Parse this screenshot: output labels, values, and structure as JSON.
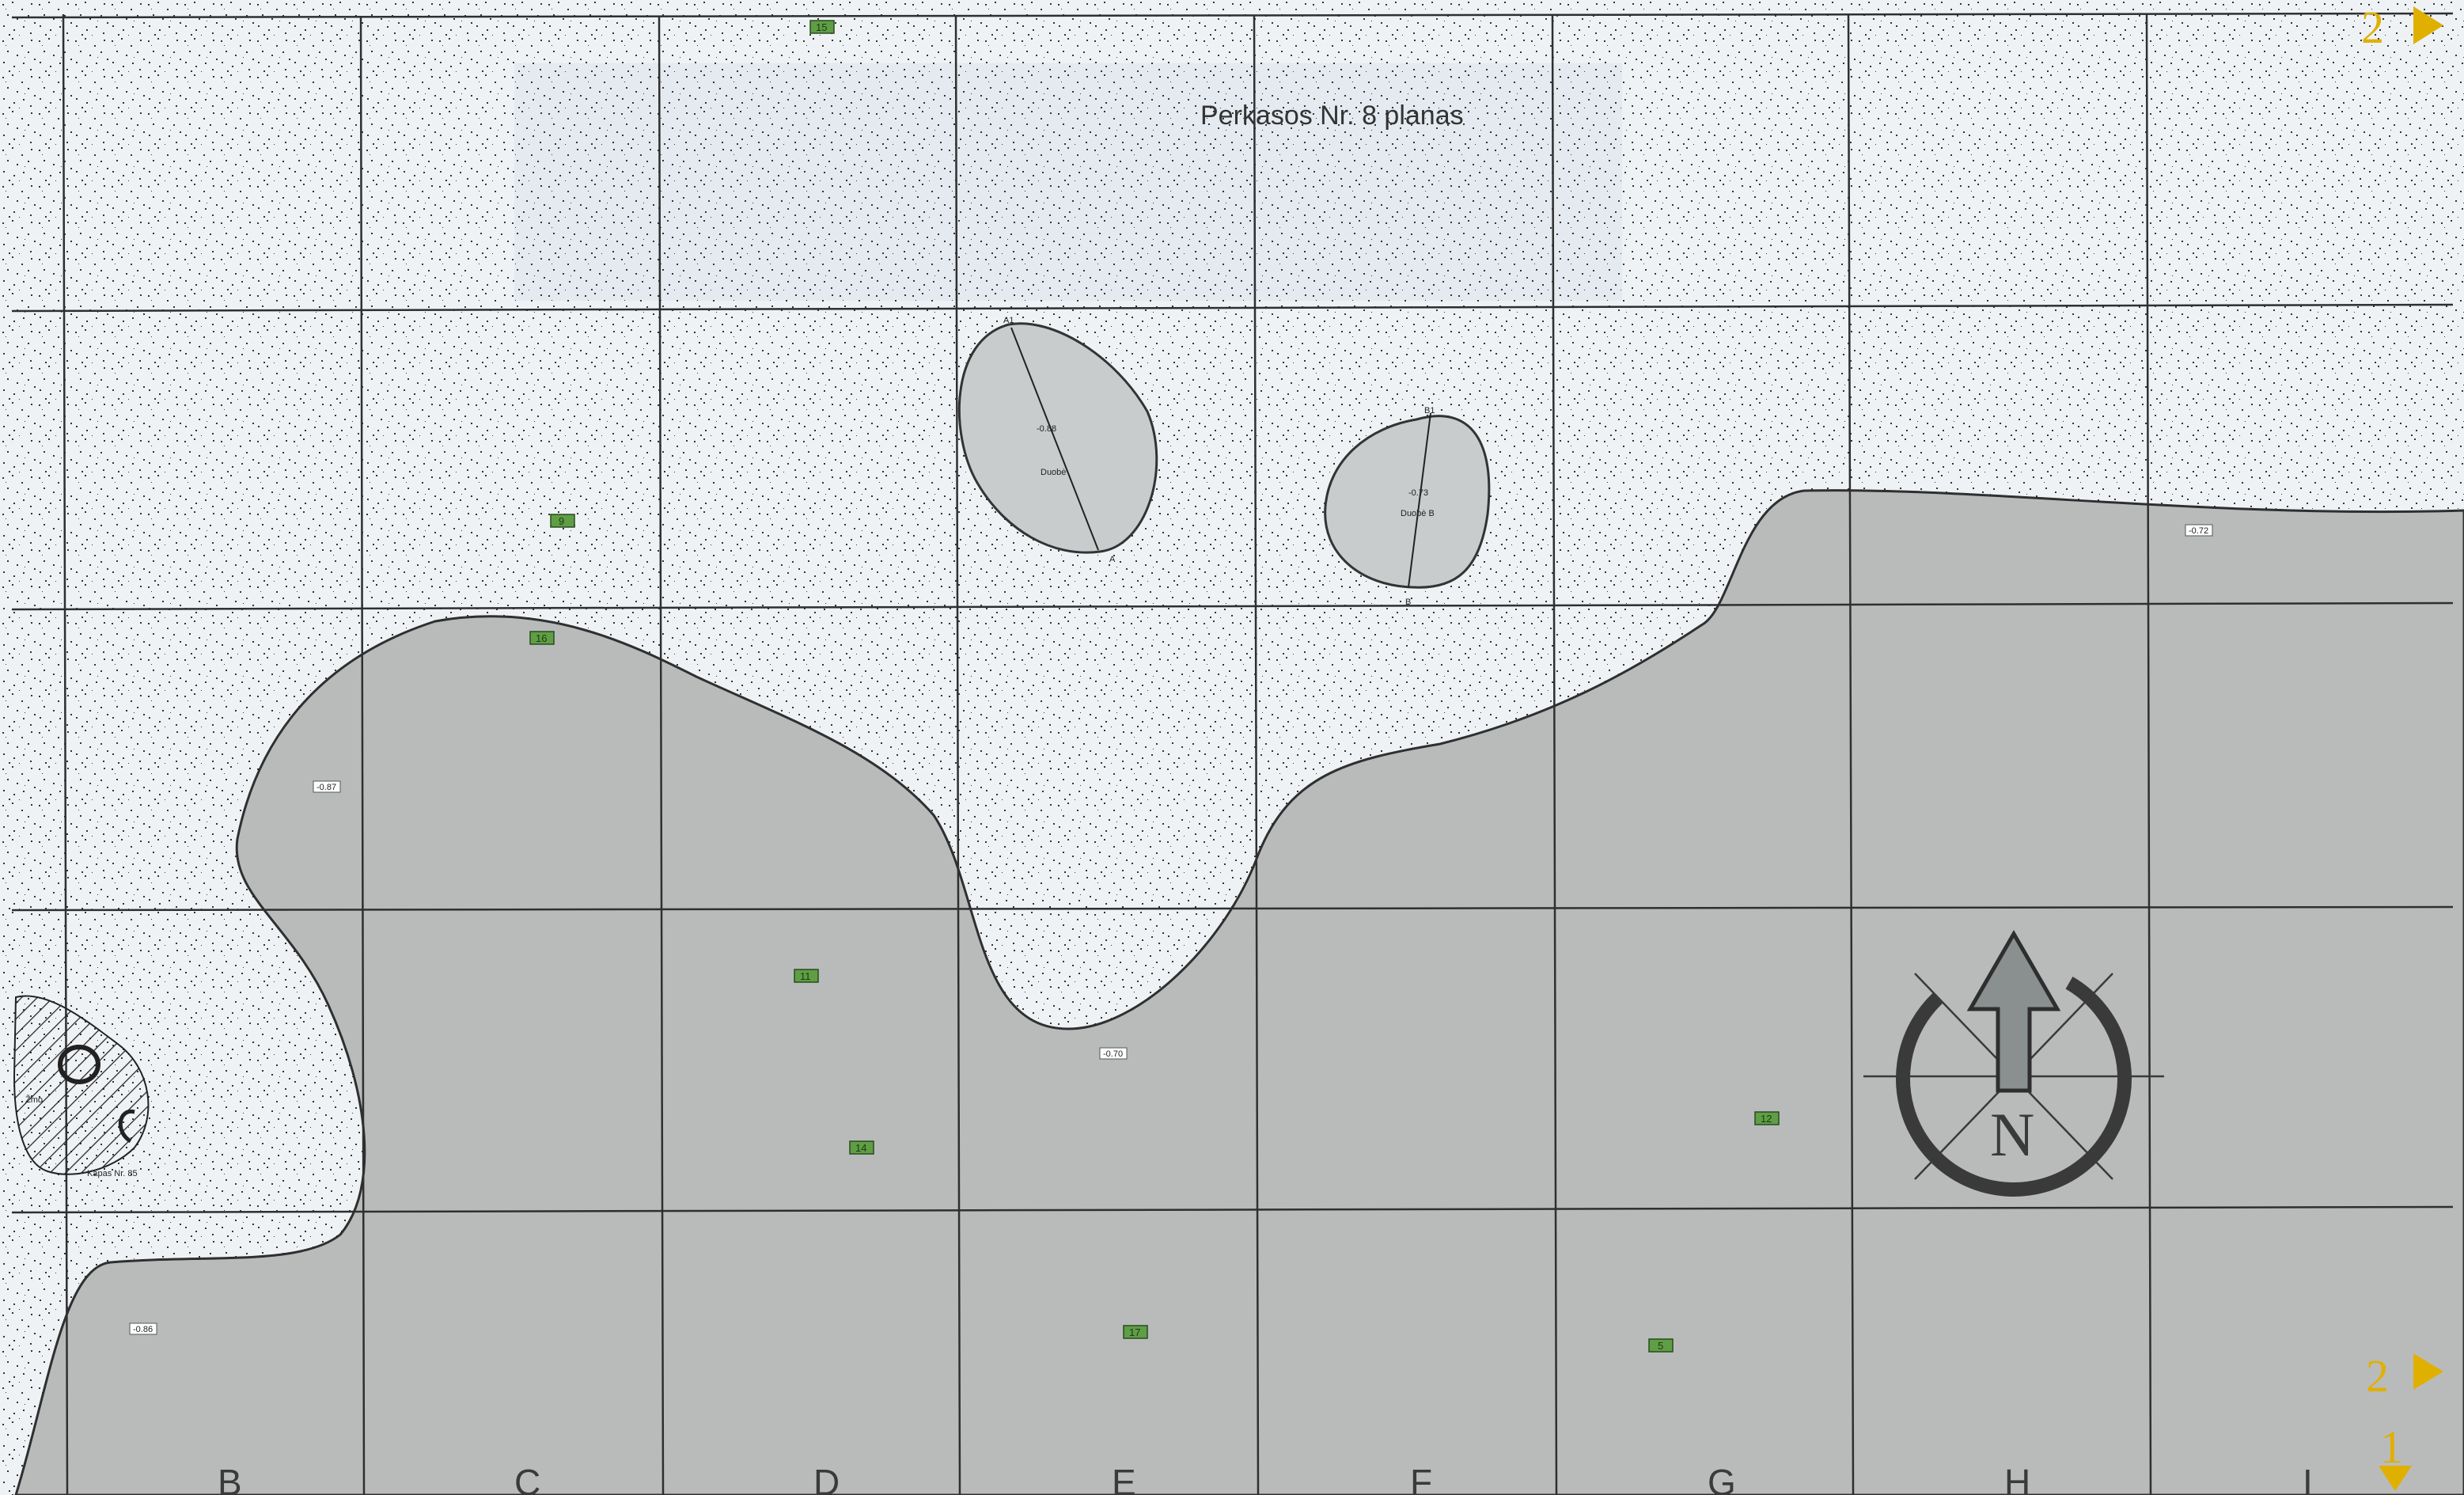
{
  "title": "Perkasos Nr. 8 planas",
  "colors": {
    "background": "#f4f6f7",
    "fill_layer": "#b9bbbb",
    "grid_line": "#2f2f2f",
    "marker_fill": "#5f9e45",
    "sheet_marker": "#e0b000"
  },
  "column_letters": [
    "B",
    "C",
    "D",
    "E",
    "F",
    "G",
    "H",
    "I"
  ],
  "finds": [
    {
      "id": "find-15",
      "number": "15"
    },
    {
      "id": "find-9",
      "number": "9"
    },
    {
      "id": "find-16",
      "number": "16"
    },
    {
      "id": "find-11",
      "number": "11"
    },
    {
      "id": "find-14",
      "number": "14"
    },
    {
      "id": "find-12",
      "number": "12"
    },
    {
      "id": "find-17",
      "number": "17"
    },
    {
      "id": "find-5",
      "number": "5"
    }
  ],
  "elevations": [
    "-0.87",
    "-0.70",
    "-0.72",
    "-0.86",
    "-0.88",
    "-0.73"
  ],
  "pits": [
    {
      "name": "Duobė",
      "depth": "-0.88",
      "section_start": "A1",
      "section_end": "A"
    },
    {
      "name": "Duobė B",
      "depth": "-0.73",
      "section_start": "B1",
      "section_end": "B"
    }
  ],
  "hatched_feature": {
    "label": "Kapas Nr. 85",
    "side_label": "Žmo"
  },
  "compass": {
    "letter": "N"
  },
  "sheet_refs": [
    "2",
    "2",
    "1"
  ]
}
